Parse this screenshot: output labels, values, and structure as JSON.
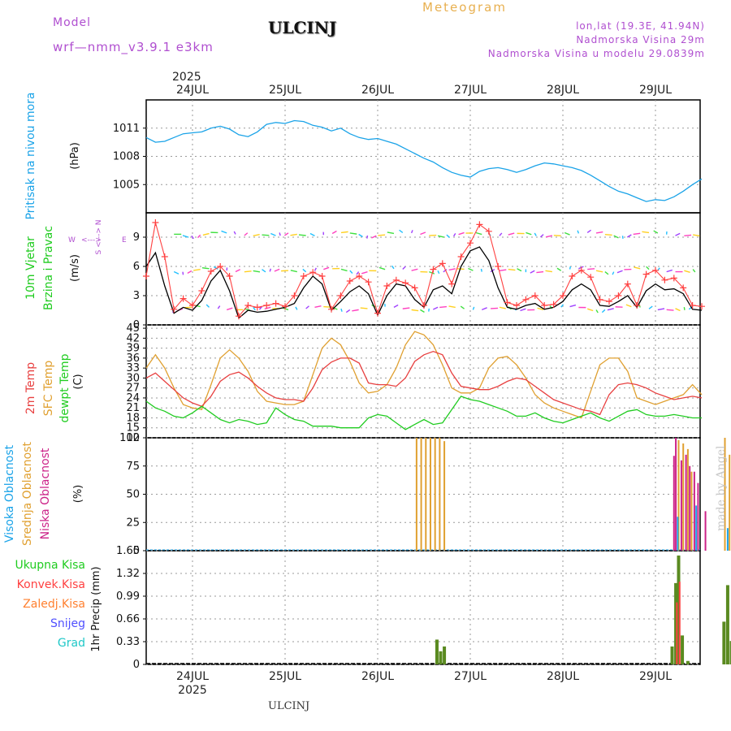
{
  "header": {
    "model_label": "Model",
    "model_name": "wrf—nmm_v3.9.1  e3km",
    "title": "ULCINJ",
    "kind": "Meteogram",
    "lonlat": "lon,lat (19.3E, 41.94N)",
    "elevation": "Nadmorska Visina 29m",
    "model_elevation": "Nadmorska Visina u modelu 29.0839m"
  },
  "footer": {
    "station": "ULCINJ",
    "made_by": "made by Angel"
  },
  "time_axis": {
    "year": "2025",
    "days": [
      "24JUL",
      "25JUL",
      "26JUL",
      "27JUL",
      "28JUL",
      "29JUL"
    ]
  },
  "colors": {
    "pressure": "#1aa3e8",
    "wind_speed": "#000000",
    "wind_gust": "#ff4040",
    "temp2m": "#e84040",
    "sfc_temp": "#e0a030",
    "dewpoint": "#20cc20",
    "high_cloud": "#1aa3e8",
    "mid_cloud": "#e0a030",
    "low_cloud": "#cc2288",
    "total_precip": "#5a8a20",
    "purple": "#b04fd0"
  },
  "chart_data": [
    {
      "type": "line",
      "panel": "pressure",
      "ylabel_side": "Pritisak na nivou mora",
      "ylabel_unit": "(hPa)",
      "yticks": [
        "1011",
        "1008",
        "1005"
      ],
      "ylim": [
        1002,
        1014
      ],
      "x_days": [
        0.0,
        0.1,
        0.2,
        0.3,
        0.4,
        0.5,
        0.6,
        0.7,
        0.8,
        0.9,
        1.0,
        1.1,
        1.2,
        1.3,
        1.4,
        1.5,
        1.6,
        1.7,
        1.8,
        1.9,
        2.0,
        2.1,
        2.2,
        2.3,
        2.4,
        2.5,
        2.6,
        2.7,
        2.8,
        2.9,
        3.0,
        3.1,
        3.2,
        3.3,
        3.4,
        3.5,
        3.6,
        3.7,
        3.8,
        3.9,
        4.0,
        4.1,
        4.2,
        4.3,
        4.4,
        4.5,
        4.6,
        4.7,
        4.8,
        4.9,
        5.0,
        5.1,
        5.2,
        5.3,
        5.4,
        5.5,
        5.6,
        5.7,
        5.8,
        5.9,
        6.0
      ],
      "series": [
        {
          "name": "Pressure",
          "values": [
            1010.0,
            1009.5,
            1009.6,
            1010.0,
            1010.4,
            1010.5,
            1010.6,
            1011.0,
            1011.2,
            1010.9,
            1010.3,
            1010.1,
            1010.6,
            1011.4,
            1011.6,
            1011.5,
            1011.8,
            1011.7,
            1011.3,
            1011.1,
            1010.7,
            1011.0,
            1010.4,
            1010.0,
            1009.8,
            1009.9,
            1009.6,
            1009.3,
            1008.8,
            1008.3,
            1007.8,
            1007.4,
            1006.8,
            1006.3,
            1006.0,
            1005.8,
            1006.4,
            1006.7,
            1006.8,
            1006.6,
            1006.3,
            1006.6,
            1007.0,
            1007.3,
            1007.2,
            1007.0,
            1006.8,
            1006.5,
            1006.0,
            1005.4,
            1004.8,
            1004.3,
            1004.0,
            1003.6,
            1003.2,
            1003.4,
            1003.3,
            1003.7,
            1004.3,
            1005.0,
            1005.6
          ]
        }
      ]
    },
    {
      "type": "line",
      "panel": "wind",
      "ylabel_side_1": "10m Vjetar",
      "ylabel_side_2": "Brzina i Pravac",
      "ylabel_unit": "(m/s)",
      "compass": {
        "w": "W",
        "e": "E",
        "n": "N",
        "s": "S"
      },
      "yticks": [
        "9",
        "6",
        "3",
        "0"
      ],
      "ylim": [
        0,
        11.5
      ],
      "x_days": [
        0.0,
        0.1,
        0.2,
        0.3,
        0.4,
        0.5,
        0.6,
        0.7,
        0.8,
        0.9,
        1.0,
        1.1,
        1.2,
        1.3,
        1.4,
        1.5,
        1.6,
        1.7,
        1.8,
        1.9,
        2.0,
        2.1,
        2.2,
        2.3,
        2.4,
        2.5,
        2.6,
        2.7,
        2.8,
        2.9,
        3.0,
        3.1,
        3.2,
        3.3,
        3.4,
        3.5,
        3.6,
        3.7,
        3.8,
        3.9,
        4.0,
        4.1,
        4.2,
        4.3,
        4.4,
        4.5,
        4.6,
        4.7,
        4.8,
        4.9,
        5.0,
        5.1,
        5.2,
        5.3,
        5.4,
        5.5,
        5.6,
        5.7,
        5.8,
        5.9,
        6.0
      ],
      "series": [
        {
          "name": "Wind speed",
          "values": [
            6.0,
            7.4,
            4.0,
            1.2,
            1.8,
            1.5,
            2.5,
            4.5,
            5.6,
            3.5,
            0.7,
            1.5,
            1.3,
            1.4,
            1.6,
            1.8,
            2.2,
            3.8,
            5.0,
            4.2,
            1.5,
            2.4,
            3.4,
            4.0,
            3.2,
            1.0,
            3.0,
            4.2,
            4.0,
            2.6,
            1.8,
            3.6,
            4.0,
            3.2,
            6.0,
            7.6,
            8.0,
            6.6,
            3.8,
            1.8,
            1.6,
            2.0,
            2.2,
            1.6,
            1.8,
            2.4,
            3.6,
            4.2,
            3.6,
            2.0,
            1.9,
            2.4,
            3.0,
            1.8,
            3.5,
            4.2,
            3.6,
            3.7,
            3.2,
            1.6,
            1.5
          ]
        },
        {
          "name": "Wind gust",
          "values": [
            5.0,
            10.5,
            7.0,
            1.6,
            2.7,
            2.0,
            3.5,
            5.5,
            6.0,
            5.0,
            0.9,
            2.0,
            1.8,
            2.0,
            2.2,
            1.9,
            3.0,
            5.0,
            5.4,
            5.0,
            1.6,
            3.0,
            4.5,
            5.0,
            4.4,
            1.2,
            4.0,
            4.6,
            4.3,
            3.8,
            2.0,
            5.7,
            6.3,
            4.2,
            7.0,
            8.4,
            10.3,
            9.6,
            6.0,
            2.3,
            2.0,
            2.6,
            3.0,
            2.0,
            2.1,
            3.0,
            5.0,
            5.6,
            4.9,
            2.6,
            2.4,
            3.0,
            4.2,
            2.0,
            5.2,
            5.6,
            4.6,
            4.8,
            3.8,
            2.0,
            1.9
          ]
        }
      ]
    },
    {
      "type": "line",
      "panel": "temperature",
      "ylabel_side_1": "2m Temp",
      "ylabel_side_2": "SFC Temp",
      "ylabel_side_3": "dewpt Temp",
      "ylabel_unit": "(C)",
      "yticks": [
        "45",
        "42",
        "39",
        "36",
        "33",
        "30",
        "27",
        "24",
        "21",
        "18",
        "15",
        "12"
      ],
      "ylim": [
        12,
        46
      ],
      "x_days": [
        0.0,
        0.1,
        0.2,
        0.3,
        0.4,
        0.5,
        0.6,
        0.7,
        0.8,
        0.9,
        1.0,
        1.1,
        1.2,
        1.3,
        1.4,
        1.5,
        1.6,
        1.7,
        1.8,
        1.9,
        2.0,
        2.1,
        2.2,
        2.3,
        2.4,
        2.5,
        2.6,
        2.7,
        2.8,
        2.9,
        3.0,
        3.1,
        3.2,
        3.3,
        3.4,
        3.5,
        3.6,
        3.7,
        3.8,
        3.9,
        4.0,
        4.1,
        4.2,
        4.3,
        4.4,
        4.5,
        4.6,
        4.7,
        4.8,
        4.9,
        5.0,
        5.1,
        5.2,
        5.3,
        5.4,
        5.5,
        5.6,
        5.7,
        5.8,
        5.9,
        6.0
      ],
      "series": [
        {
          "name": "2m Temp",
          "values": [
            30.0,
            31.5,
            29.0,
            26.5,
            24.0,
            22.5,
            21.5,
            24.5,
            29.0,
            31.0,
            31.8,
            30.0,
            27.5,
            25.5,
            24.0,
            23.5,
            23.5,
            23.0,
            27.0,
            32.5,
            34.8,
            36.0,
            36.0,
            34.5,
            28.5,
            28.0,
            28.0,
            27.5,
            30.0,
            35.0,
            37.0,
            38.0,
            37.0,
            31.5,
            27.5,
            27.0,
            26.5,
            26.5,
            27.5,
            29.0,
            30.0,
            29.5,
            27.5,
            25.5,
            23.5,
            22.5,
            21.5,
            20.5,
            20.0,
            19.0,
            25.0,
            28.0,
            28.5,
            28.0,
            27.0,
            25.5,
            24.5,
            23.5,
            24.0,
            24.5,
            24.0
          ]
        },
        {
          "name": "SFC Temp",
          "values": [
            33.0,
            37.0,
            33.0,
            27.0,
            22.0,
            21.0,
            20.5,
            28.0,
            36.0,
            38.5,
            36.0,
            32.0,
            26.0,
            23.0,
            22.5,
            22.0,
            22.0,
            23.0,
            31.0,
            39.0,
            42.0,
            40.0,
            35.0,
            28.5,
            25.5,
            26.0,
            28.0,
            33.0,
            40.0,
            44.0,
            43.0,
            40.0,
            34.0,
            27.0,
            25.5,
            25.5,
            27.0,
            33.0,
            36.0,
            36.5,
            34.0,
            30.0,
            25.0,
            22.5,
            21.0,
            20.0,
            19.0,
            18.0,
            26.0,
            34.0,
            36.0,
            36.0,
            32.0,
            24.0,
            23.0,
            22.0,
            23.0,
            24.0,
            25.0,
            28.0,
            25.0
          ]
        },
        {
          "name": "Dewpoint",
          "values": [
            23.0,
            21.0,
            20.0,
            18.5,
            18.0,
            19.5,
            21.5,
            19.5,
            17.5,
            16.5,
            17.5,
            17.0,
            16.0,
            16.5,
            21.0,
            19.0,
            17.5,
            17.0,
            15.5,
            15.5,
            15.5,
            15.0,
            15.0,
            15.0,
            18.0,
            19.0,
            18.5,
            16.5,
            14.5,
            16.0,
            17.5,
            16.0,
            16.5,
            20.5,
            24.5,
            23.5,
            23.0,
            22.0,
            21.0,
            20.0,
            18.5,
            18.5,
            19.5,
            18.0,
            17.0,
            16.5,
            17.5,
            18.5,
            19.5,
            18.0,
            17.0,
            18.5,
            20.0,
            20.5,
            19.0,
            18.5,
            18.5,
            19.0,
            18.5,
            18.0,
            18.0
          ]
        }
      ]
    },
    {
      "type": "bar",
      "panel": "clouds",
      "ylabel_side_1": "Visoka Oblacnost",
      "ylabel_side_2": "Srednja Oblacnost",
      "ylabel_side_3": "Niska Oblacnost",
      "ylabel_unit": "(%)",
      "yticks": [
        "100",
        "75",
        "50",
        "25",
        "0"
      ],
      "ylim": [
        0,
        100
      ],
      "series": [
        {
          "name": "Srednja (mid)",
          "x_days": [
            2.92,
            2.97,
            3.02,
            3.07,
            3.12,
            3.17,
            3.22,
            5.75,
            5.8,
            5.85,
            5.89,
            6.25,
            6.3,
            6.35,
            6.4
          ],
          "values": [
            100,
            100,
            100,
            100,
            100,
            100,
            97,
            98,
            95,
            90,
            70,
            100,
            85,
            80,
            82
          ]
        },
        {
          "name": "Niska (low)",
          "x_days": [
            5.7,
            5.72,
            5.78,
            5.83,
            5.87,
            5.92,
            5.96,
            6.04,
            6.33,
            6.38,
            6.45
          ],
          "values": [
            84,
            100,
            80,
            85,
            75,
            70,
            60,
            35,
            75,
            60,
            80
          ]
        },
        {
          "name": "Visoka (high)",
          "x_days": [
            5.74,
            5.94,
            6.28
          ],
          "values": [
            30,
            40,
            20
          ]
        }
      ]
    },
    {
      "type": "bar",
      "panel": "precipitation",
      "ylabel_unit": "1hr Precip (mm)",
      "legend": [
        "Ukupna Kisa",
        "Konvek.Kisa",
        "Zaledj.Kisa",
        "Snijeg",
        "Grad"
      ],
      "yticks": [
        "1.65",
        "1.32",
        "0.99",
        "0.66",
        "0.33",
        "0"
      ],
      "ylim": [
        0,
        1.65
      ],
      "series": [
        {
          "name": "Ukupna Kisa",
          "x_days": [
            3.14,
            3.18,
            3.22,
            5.68,
            5.72,
            5.75,
            5.79,
            5.85,
            6.24,
            6.28,
            6.32,
            6.36,
            6.4,
            6.45
          ],
          "values": [
            0.36,
            0.19,
            0.26,
            0.26,
            1.18,
            1.58,
            0.42,
            0.05,
            0.62,
            1.15,
            0.34,
            0.49,
            0.86,
            0.58
          ]
        },
        {
          "name": "Konvek.Kisa",
          "x_days": [
            5.74,
            5.77
          ],
          "values": [
            0.9,
            1.2
          ]
        }
      ]
    }
  ]
}
